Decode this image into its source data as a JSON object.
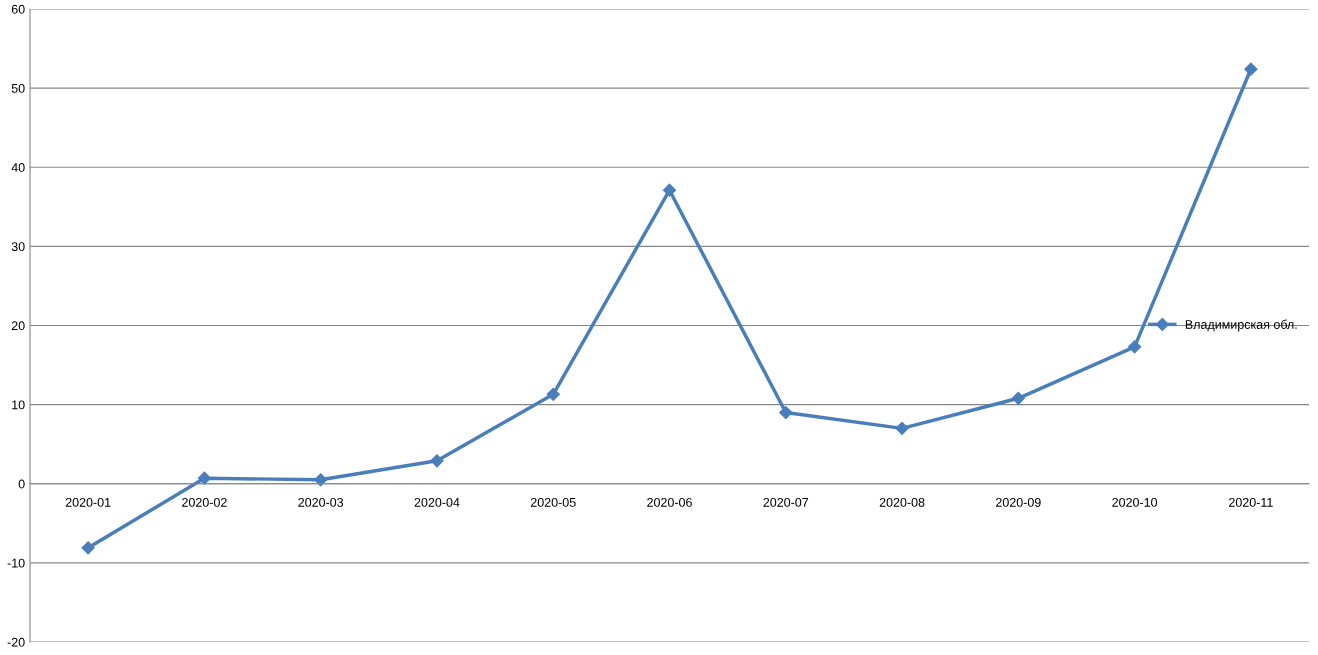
{
  "chart_data": {
    "type": "line",
    "categories": [
      "2020-01",
      "2020-02",
      "2020-03",
      "2020-04",
      "2020-05",
      "2020-06",
      "2020-07",
      "2020-08",
      "2020-09",
      "2020-10",
      "2020-11"
    ],
    "series": [
      {
        "name": "Владимирская обл.",
        "color": "#4a7ebb",
        "values": [
          -8.1,
          0.7,
          0.5,
          2.9,
          11.3,
          37.1,
          9.0,
          7.0,
          10.8,
          17.3,
          52.4
        ]
      }
    ],
    "ylim": [
      -20,
      60
    ],
    "yticks": [
      -20,
      -10,
      0,
      10,
      20,
      30,
      40,
      50,
      60
    ],
    "grid": "y",
    "legend": "right",
    "marker": "diamond",
    "line_style": "solid"
  }
}
